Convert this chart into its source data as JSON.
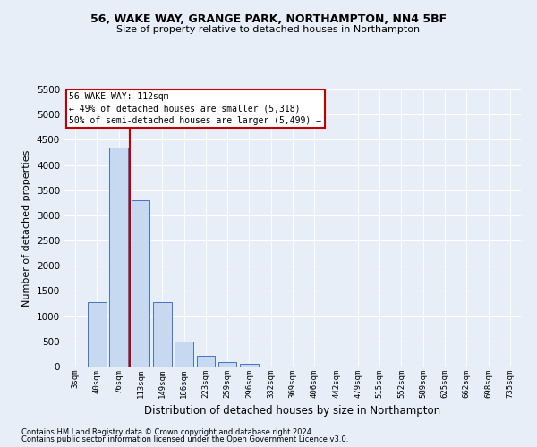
{
  "title1": "56, WAKE WAY, GRANGE PARK, NORTHAMPTON, NN4 5BF",
  "title2": "Size of property relative to detached houses in Northampton",
  "xlabel": "Distribution of detached houses by size in Northampton",
  "ylabel": "Number of detached properties",
  "footer1": "Contains HM Land Registry data © Crown copyright and database right 2024.",
  "footer2": "Contains public sector information licensed under the Open Government Licence v3.0.",
  "categories": [
    "3sqm",
    "40sqm",
    "76sqm",
    "113sqm",
    "149sqm",
    "186sqm",
    "223sqm",
    "259sqm",
    "296sqm",
    "332sqm",
    "369sqm",
    "406sqm",
    "442sqm",
    "479sqm",
    "515sqm",
    "552sqm",
    "589sqm",
    "625sqm",
    "662sqm",
    "698sqm",
    "735sqm"
  ],
  "bar_values": [
    0,
    1270,
    4340,
    3300,
    1280,
    490,
    210,
    90,
    60,
    0,
    0,
    0,
    0,
    0,
    0,
    0,
    0,
    0,
    0,
    0,
    0
  ],
  "bar_color": "#c6d9f0",
  "bar_edge_color": "#4472c4",
  "annotation_box_text1": "56 WAKE WAY: 112sqm",
  "annotation_box_text2": "← 49% of detached houses are smaller (5,318)",
  "annotation_box_text3": "50% of semi-detached houses are larger (5,499) →",
  "annotation_line_color": "#c00000",
  "annotation_box_edge_color": "#c00000",
  "ylim": [
    0,
    5500
  ],
  "yticks": [
    0,
    500,
    1000,
    1500,
    2000,
    2500,
    3000,
    3500,
    4000,
    4500,
    5000,
    5500
  ],
  "background_color": "#e8eef8",
  "grid_color": "#ffffff"
}
